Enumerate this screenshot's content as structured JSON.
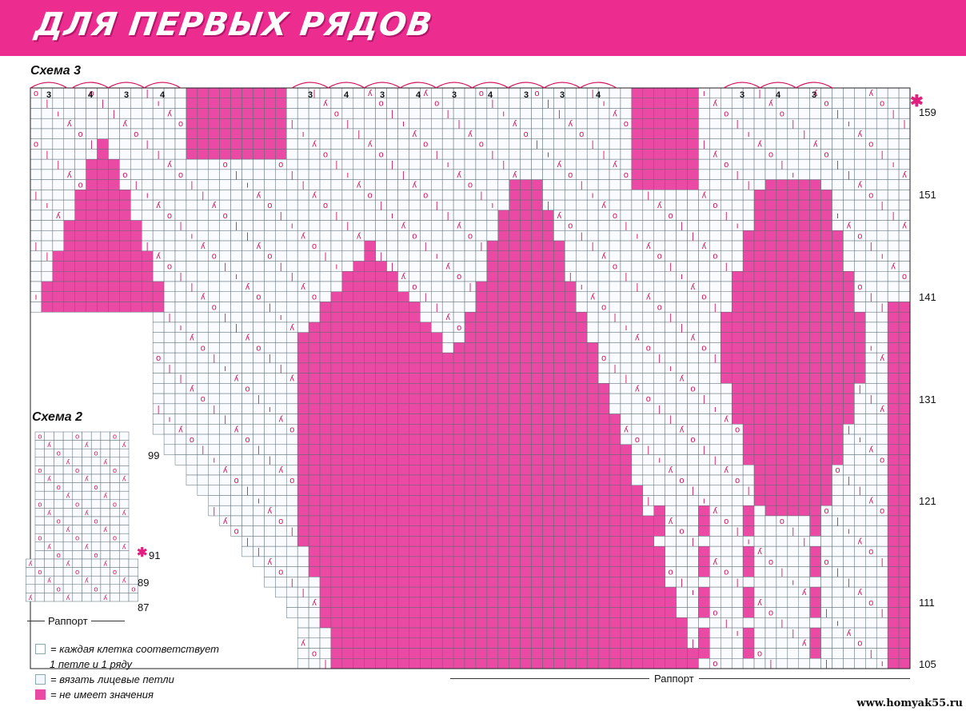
{
  "header": {
    "title": "ДЛЯ ПЕРВЫХ РЯДОВ"
  },
  "scheme3": {
    "label": "Схема 3",
    "row_numbers": [
      "159",
      "151",
      "141",
      "131",
      "121",
      "111",
      "105"
    ],
    "top_counts": [
      "3",
      "4",
      "3",
      "4",
      "3",
      "4",
      "3",
      "4",
      "3",
      "4",
      "3",
      "3",
      "4",
      "3",
      "4",
      "3"
    ],
    "rapport_label": "Раппорт"
  },
  "scheme2": {
    "label": "Схема 2",
    "row_numbers": [
      "99",
      "91",
      "89",
      "87"
    ],
    "rapport_label": "Раппорт"
  },
  "legend": {
    "items": [
      {
        "text_line1": "= каждая клетка соответствует",
        "text_line2": "1 петле и 1 ряду"
      },
      {
        "text_line1": "= вязать лицевые петли"
      },
      {
        "text_line1": "= не имеет значения"
      }
    ]
  },
  "colors": {
    "banner": "#ec2c8e",
    "pink_fill": "#ea4aa3",
    "grid": "#5a6b74",
    "symbol": "#d3165f"
  },
  "watermark": "www.homyak55.ru"
}
